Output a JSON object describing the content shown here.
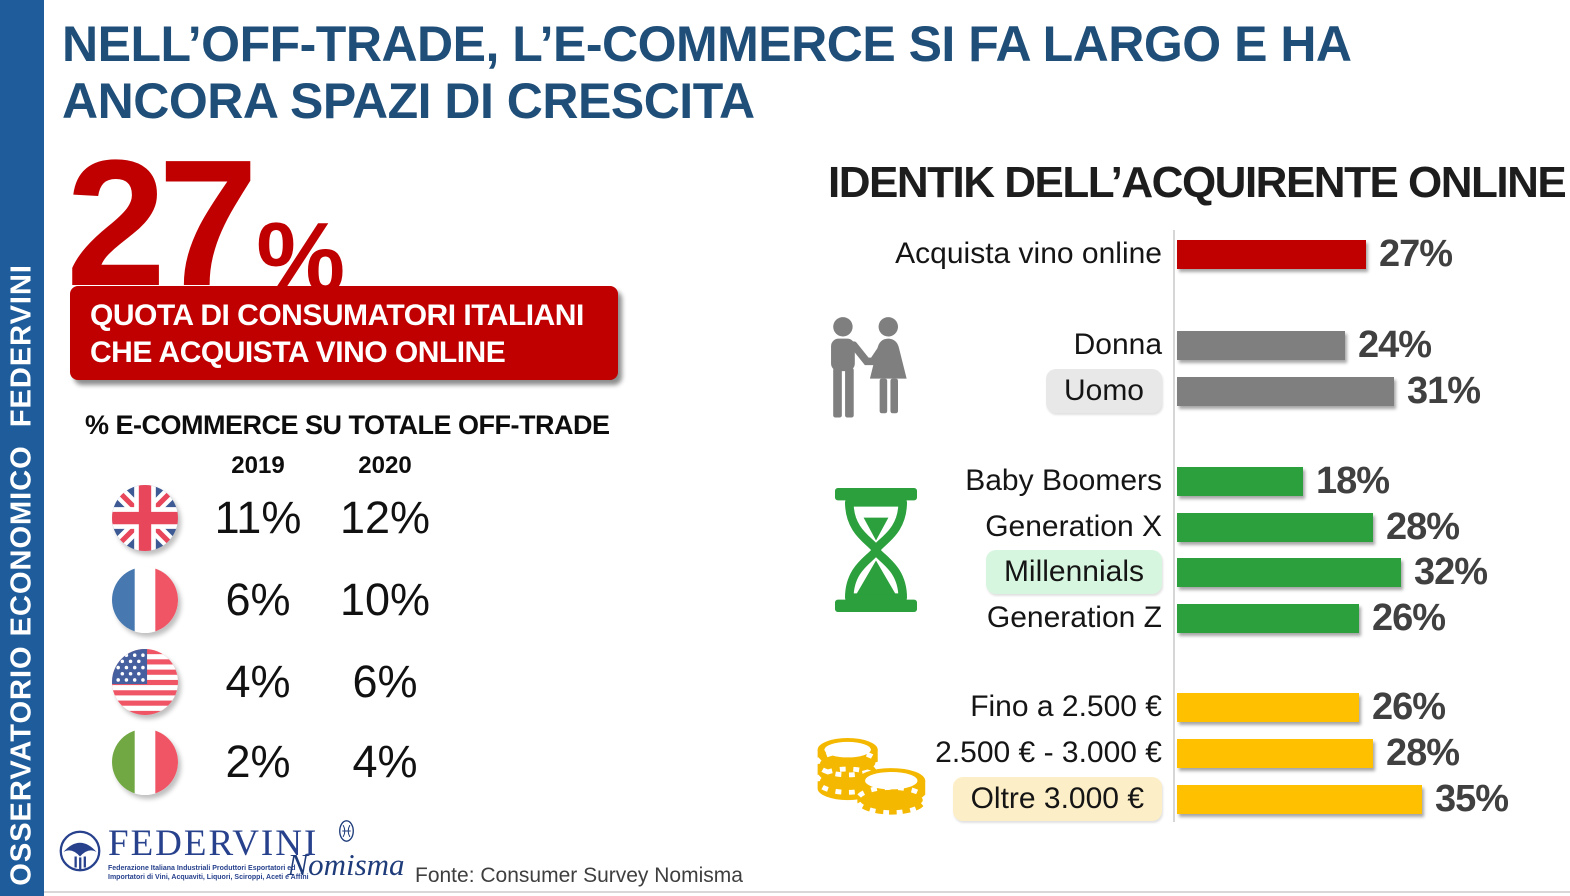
{
  "colors": {
    "sidebar_blue": "#1E5C9B",
    "title_blue": "#1F4E79",
    "accent_red": "#C00000",
    "bar_gray": "#7F7F7F",
    "bar_green": "#2BA03C",
    "bar_yellow": "#FFC000",
    "pct_label_gray": "#404040",
    "axis_gray": "#D6D6D6"
  },
  "sidebar": {
    "label": "OSSERVATORIO ECONOMICO  FEDERVINI"
  },
  "title": {
    "line1": "NELL’OFF-TRADE, L’E-COMMERCE SI FA LARGO E HA",
    "line2": "ANCORA SPAZI DI CRESCITA"
  },
  "key_stat": {
    "number": "27",
    "percent_sign": "%",
    "caption_line1": "QUOTA DI CONSUMATORI ITALIANI",
    "caption_line2": "CHE ACQUISTA VINO ONLINE"
  },
  "offtrade_table": {
    "title": "% E-COMMERCE SU TOTALE OFF-TRADE",
    "col_2019": "2019",
    "col_2020": "2020",
    "rows": [
      {
        "flag": "uk-flag-icon",
        "y2019": "11%",
        "y2020": "12%"
      },
      {
        "flag": "france-flag-icon",
        "y2019": "6%",
        "y2020": "10%"
      },
      {
        "flag": "usa-flag-icon",
        "y2019": "4%",
        "y2020": "6%"
      },
      {
        "flag": "italy-flag-icon",
        "y2019": "2%",
        "y2020": "4%"
      }
    ]
  },
  "chart_data": {
    "type": "bar",
    "orientation": "horizontal",
    "title": "IDENTIK DELL’ACQUIRENTE ONLINE",
    "unit": "%",
    "xlim": [
      0,
      40
    ],
    "legend": "none",
    "grid": "off",
    "categories": [
      "Acquista vino online",
      "Donna",
      "Uomo",
      "Baby Boomers",
      "Generation X",
      "Millennials",
      "Generation Z",
      "Fino a 2.500 €",
      "2.500 € - 3.000 €",
      "Oltre 3.000 €"
    ],
    "values": [
      27,
      24,
      31,
      18,
      28,
      32,
      26,
      26,
      28,
      35
    ],
    "groups": [
      {
        "name": "overall",
        "icon": null,
        "color": "#C00000",
        "items": [
          {
            "label": "Acquista vino online",
            "value": 27,
            "display": "27%",
            "highlighted": false
          }
        ]
      },
      {
        "name": "genere",
        "icon": "couple-icon",
        "color": "#7F7F7F",
        "items": [
          {
            "label": "Donna",
            "value": 24,
            "display": "24%",
            "highlighted": false
          },
          {
            "label": "Uomo",
            "value": 31,
            "display": "31%",
            "highlighted": true,
            "highlight_color": "#E9E8E8"
          }
        ]
      },
      {
        "name": "generazione",
        "icon": "hourglass-icon",
        "color": "#2BA03C",
        "items": [
          {
            "label": "Baby Boomers",
            "value": 18,
            "display": "18%",
            "highlighted": false
          },
          {
            "label": "Generation X",
            "value": 28,
            "display": "28%",
            "highlighted": false
          },
          {
            "label": "Millennials",
            "value": 32,
            "display": "32%",
            "highlighted": true,
            "highlight_color": "#D7F6DF"
          },
          {
            "label": "Generation Z",
            "value": 26,
            "display": "26%",
            "highlighted": false
          }
        ]
      },
      {
        "name": "spesa",
        "icon": "coins-icon",
        "color": "#FFC000",
        "items": [
          {
            "label": "Fino a 2.500 €",
            "value": 26,
            "display": "26%",
            "highlighted": false
          },
          {
            "label": "2.500 € - 3.000 €",
            "value": 28,
            "display": "28%",
            "highlighted": false
          },
          {
            "label": "Oltre 3.000 €",
            "value": 35,
            "display": "35%",
            "highlighted": true,
            "highlight_color": "#FCEEC6"
          }
        ]
      }
    ]
  },
  "footer": {
    "federvini_name": "FEDERVINI",
    "federvini_sub1": "Federazione Italiana Industriali Produttori Esportatori ed",
    "federvini_sub2": "Importatori di Vini, Acquaviti, Liquori, Sciroppi, Aceti e Affini",
    "nomisma_name": "Nomisma",
    "source": "Fonte: Consumer Survey Nomisma"
  }
}
